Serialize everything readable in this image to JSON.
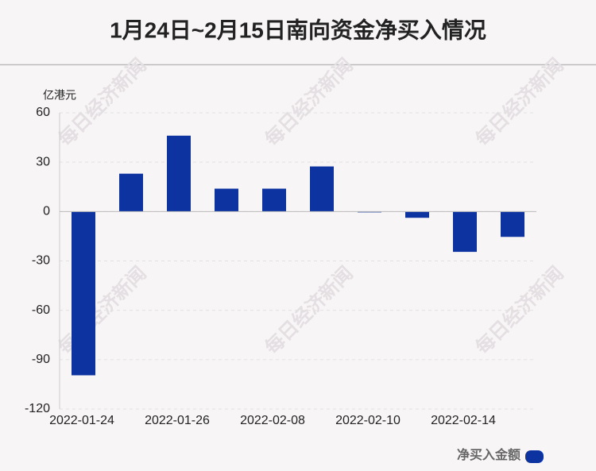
{
  "chart_data": {
    "type": "bar",
    "title": "1月24日~2月15日南向资金净买入情况",
    "y_unit": "亿港元",
    "watermark": "每日经济新闻",
    "categories": [
      "2022-01-24",
      null,
      "2022-01-26",
      null,
      "2022-02-08",
      null,
      "2022-02-10",
      null,
      "2022-02-14",
      null
    ],
    "series": [
      {
        "name": "净买入金额",
        "color": "#0c339f",
        "values": [
          -99.5,
          23.0,
          46.1,
          13.9,
          13.9,
          27.4,
          -0.5,
          -3.8,
          -24.5,
          -15.4
        ]
      }
    ],
    "ylim": [
      -120,
      60
    ],
    "yticks": [
      -120,
      -90,
      -60,
      -30,
      0,
      30,
      60
    ],
    "grid": true,
    "legend": "bottom-right"
  }
}
